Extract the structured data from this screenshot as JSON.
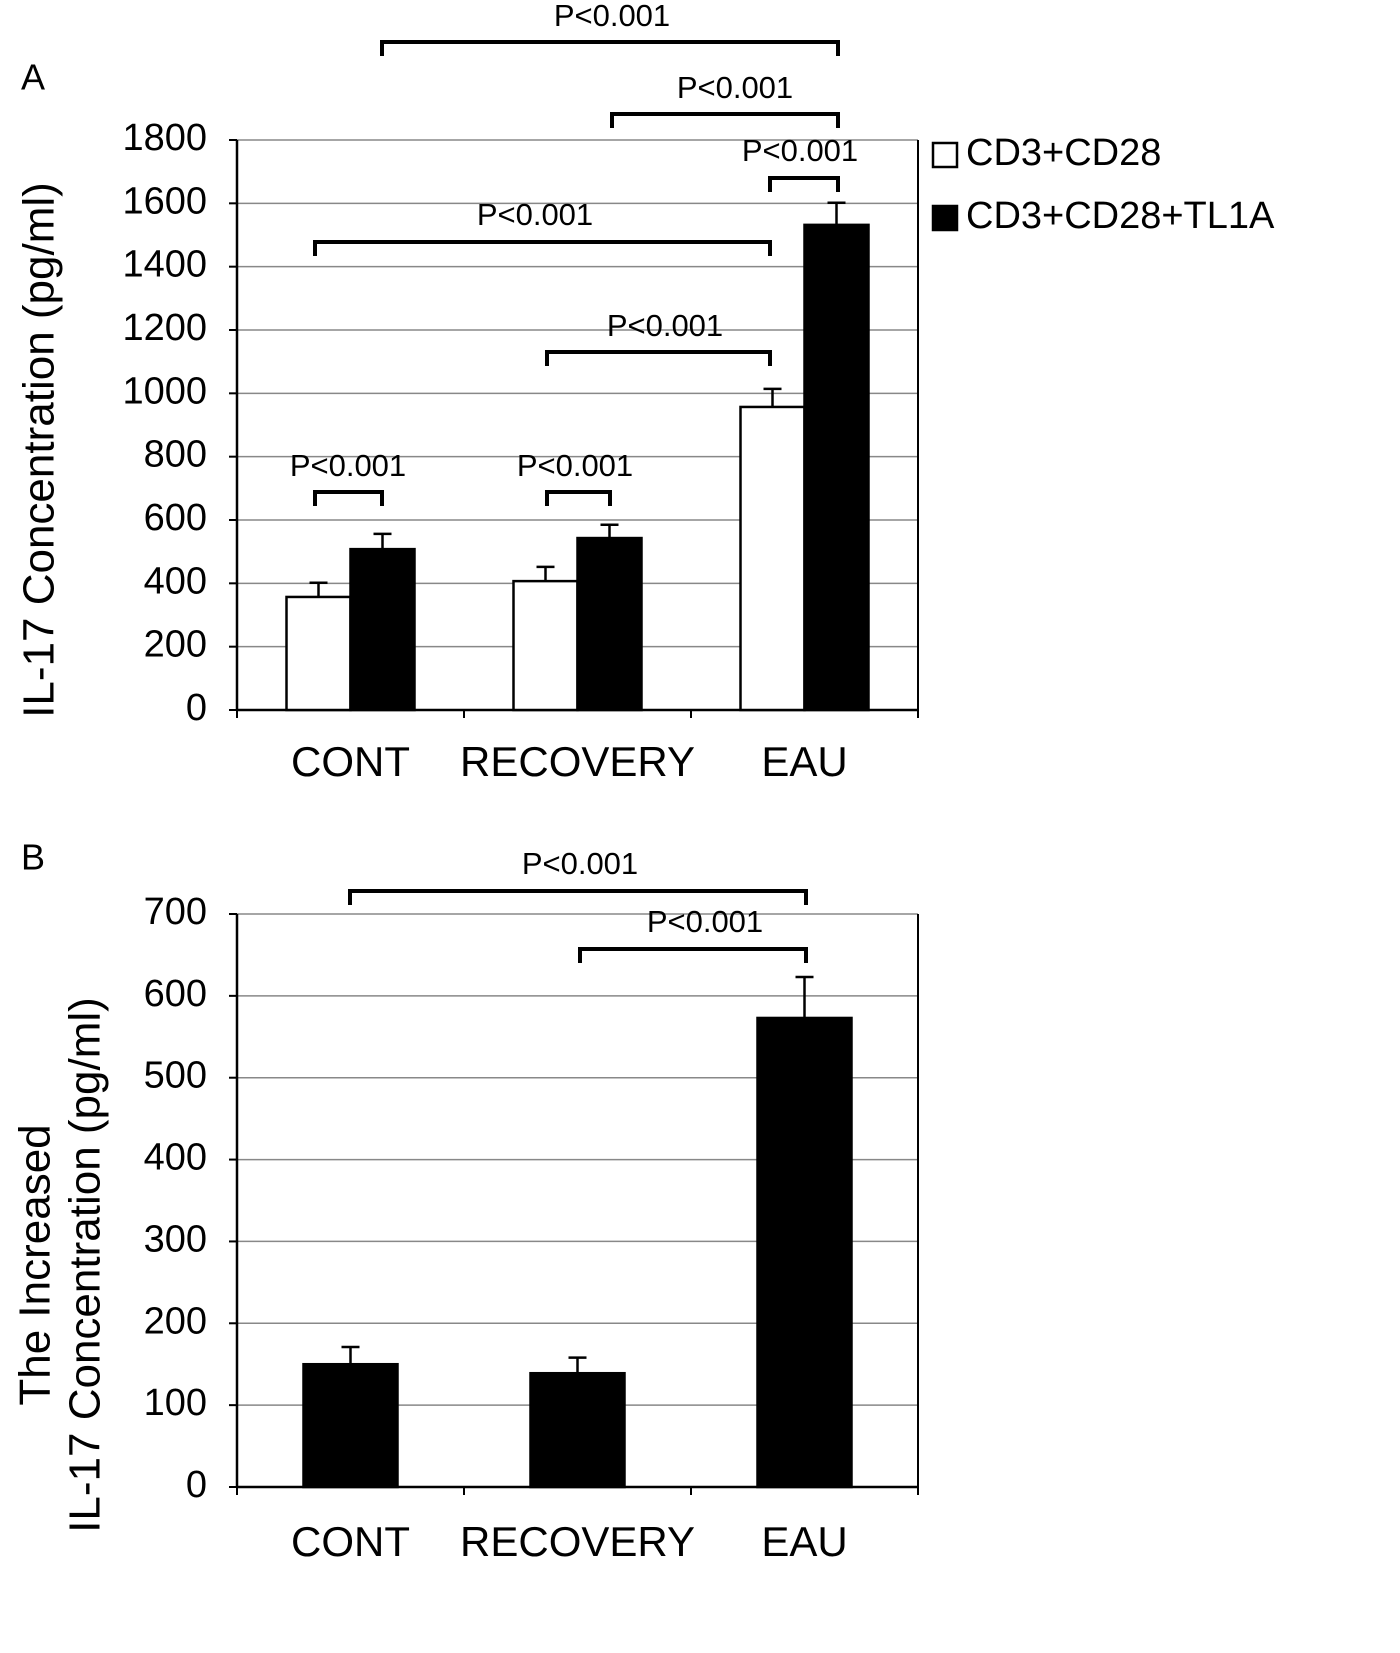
{
  "chart_data": [
    {
      "type": "bar",
      "panel": "A",
      "y_label": [
        "IL-17 Concentration (pg/ml)"
      ],
      "categories": [
        "CONT",
        "RECOVERY",
        "EAU"
      ],
      "series": [
        {
          "name": "CD3+CD28",
          "color": "#ffffff",
          "values": [
            357,
            407,
            957
          ],
          "errors": [
            45,
            45,
            57
          ]
        },
        {
          "name": "CD3+CD28+TL1A",
          "color": "#000000",
          "values": [
            508,
            543,
            1532
          ],
          "errors": [
            48,
            42,
            70
          ]
        }
      ],
      "ylim": [
        0,
        1800
      ],
      "yticks": [
        0,
        200,
        400,
        600,
        800,
        1000,
        1200,
        1400,
        1600,
        1800
      ],
      "grid": true,
      "legend": "right",
      "annotations": [
        "P<0.001",
        "P<0.001",
        "P<0.001",
        "P<0.001",
        "P<0.001",
        "P<0.001",
        "P<0.001"
      ]
    },
    {
      "type": "bar",
      "panel": "B",
      "y_label": [
        "The Increased",
        "IL-17 Concentration (pg/ml)"
      ],
      "categories": [
        "CONT",
        "RECOVERY",
        "EAU"
      ],
      "series": [
        {
          "color": "#000000",
          "values": [
            150,
            139,
            573
          ],
          "errors": [
            21,
            19,
            50
          ]
        }
      ],
      "ylim": [
        0,
        700
      ],
      "yticks": [
        0,
        100,
        200,
        300,
        400,
        500,
        600,
        700
      ],
      "grid": true,
      "annotations": [
        "P<0.001",
        "P<0.001"
      ]
    }
  ]
}
